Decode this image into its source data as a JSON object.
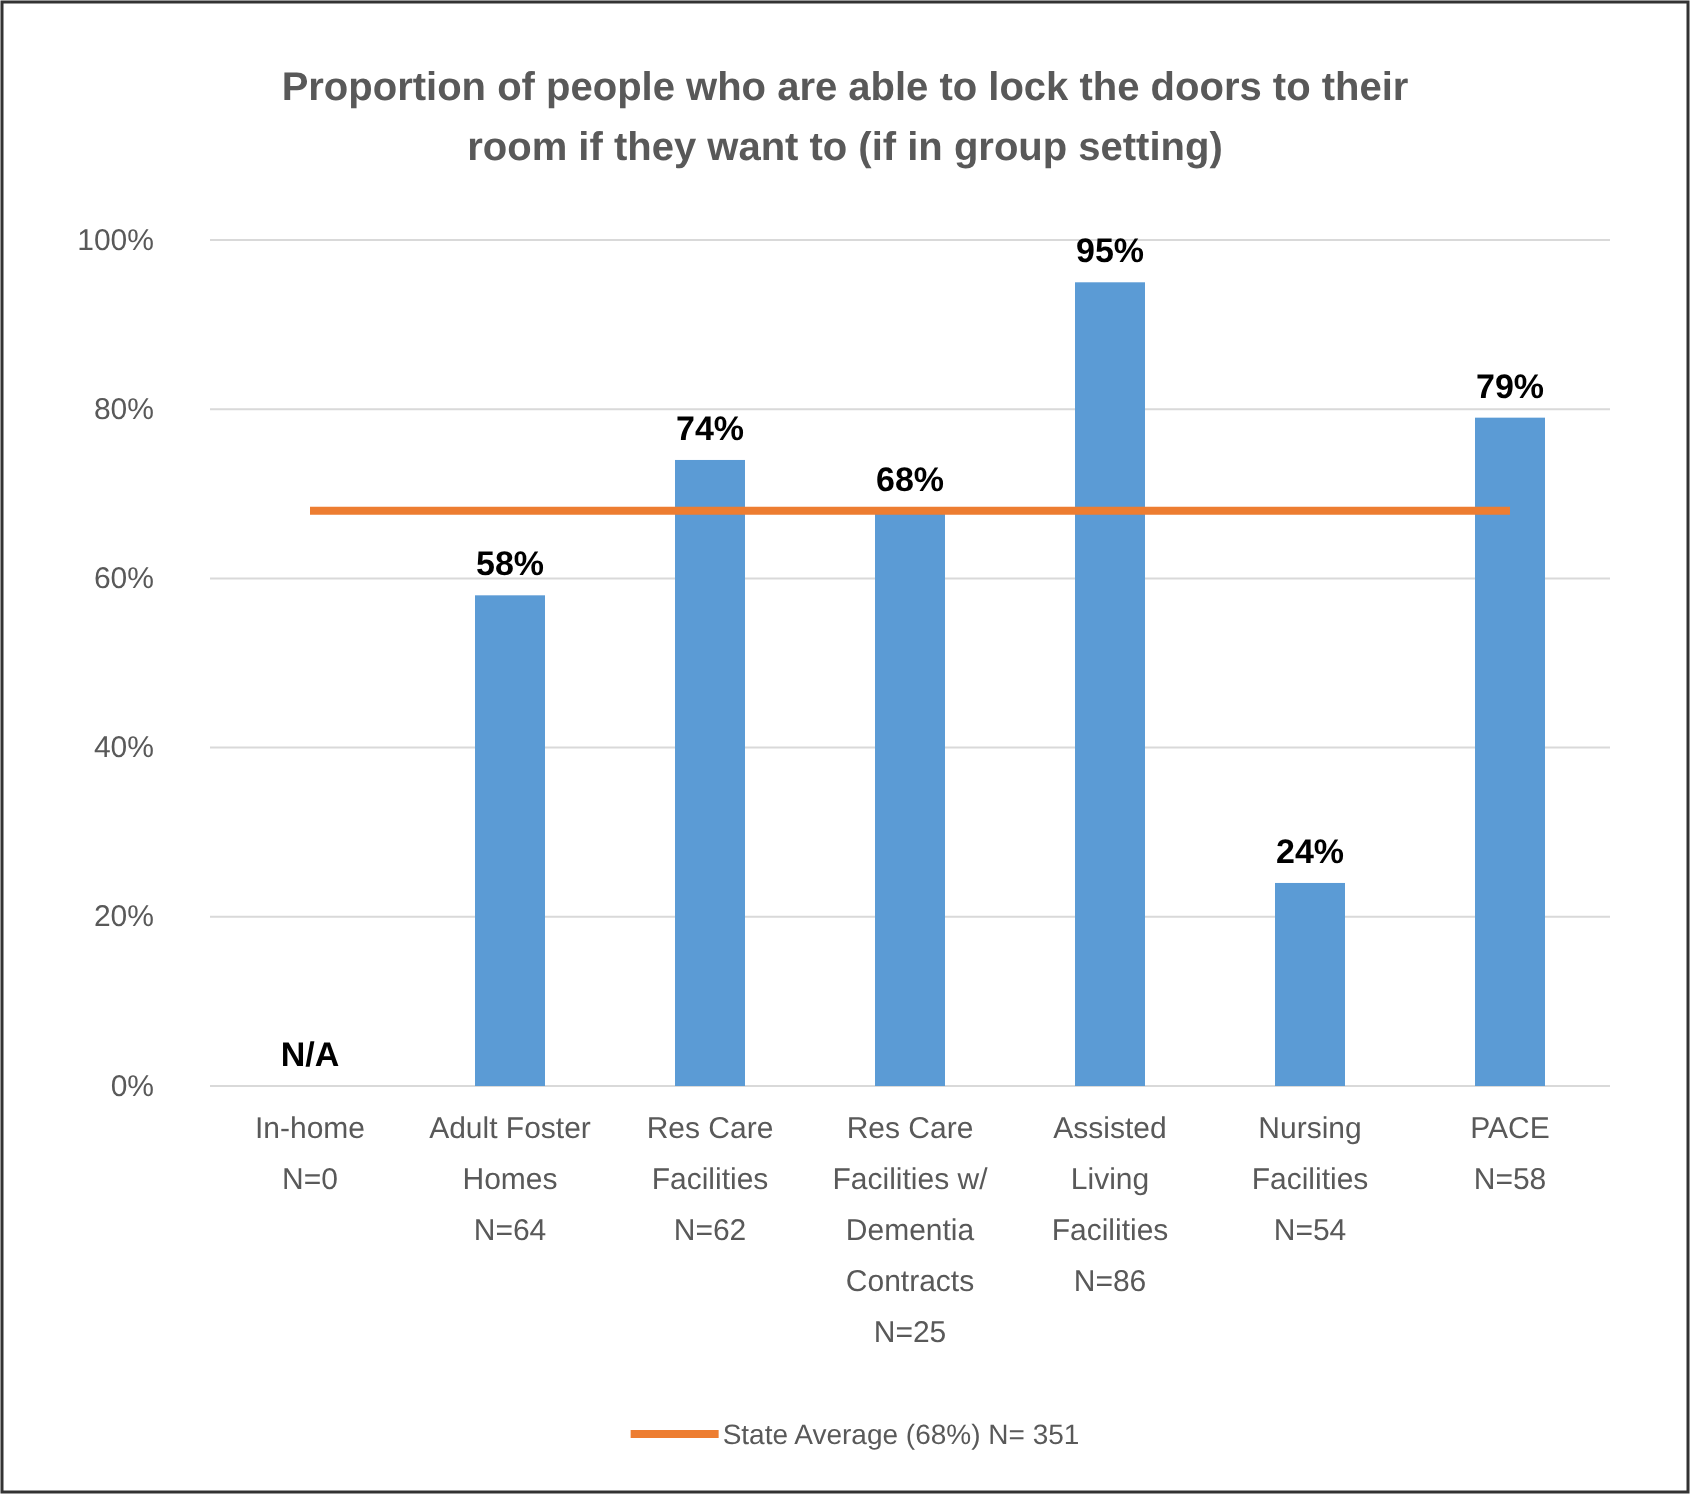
{
  "chart_data": {
    "type": "bar",
    "title": "Proportion of people who are able to lock the doors to their\nroom if they want to (if in group setting)",
    "categories": [
      "In-home\nN=0",
      "Adult Foster\nHomes\nN=64",
      "Res Care\nFacilities\nN=62",
      "Res Care\nFacilities w/\nDementia\nContracts\nN=25",
      "Assisted\nLiving\nFacilities\nN=86",
      "Nursing\nFacilities\nN=54",
      "PACE\nN=58"
    ],
    "series": [
      {
        "color": "#5b9bd5",
        "values": [
          null,
          58,
          74,
          68,
          95,
          24,
          79
        ],
        "value_labels": [
          "N/A",
          "58%",
          "74%",
          "68%",
          "95%",
          "24%",
          "79%"
        ]
      },
      {
        "type": "line",
        "name": "State Average (68%) N= 351",
        "color": "#ed7d31",
        "values": [
          68,
          68,
          68,
          68,
          68,
          68,
          68
        ],
        "marker": "none"
      }
    ],
    "ylim": [
      0,
      100
    ],
    "yticks": [
      {
        "value": 0,
        "label": "0%"
      },
      {
        "value": 20,
        "label": "20%"
      },
      {
        "value": 40,
        "label": "40%"
      },
      {
        "value": 60,
        "label": "60%"
      },
      {
        "value": 80,
        "label": "80%"
      },
      {
        "value": 100,
        "label": "100%"
      }
    ],
    "grid": "y",
    "legend": "bottom"
  }
}
